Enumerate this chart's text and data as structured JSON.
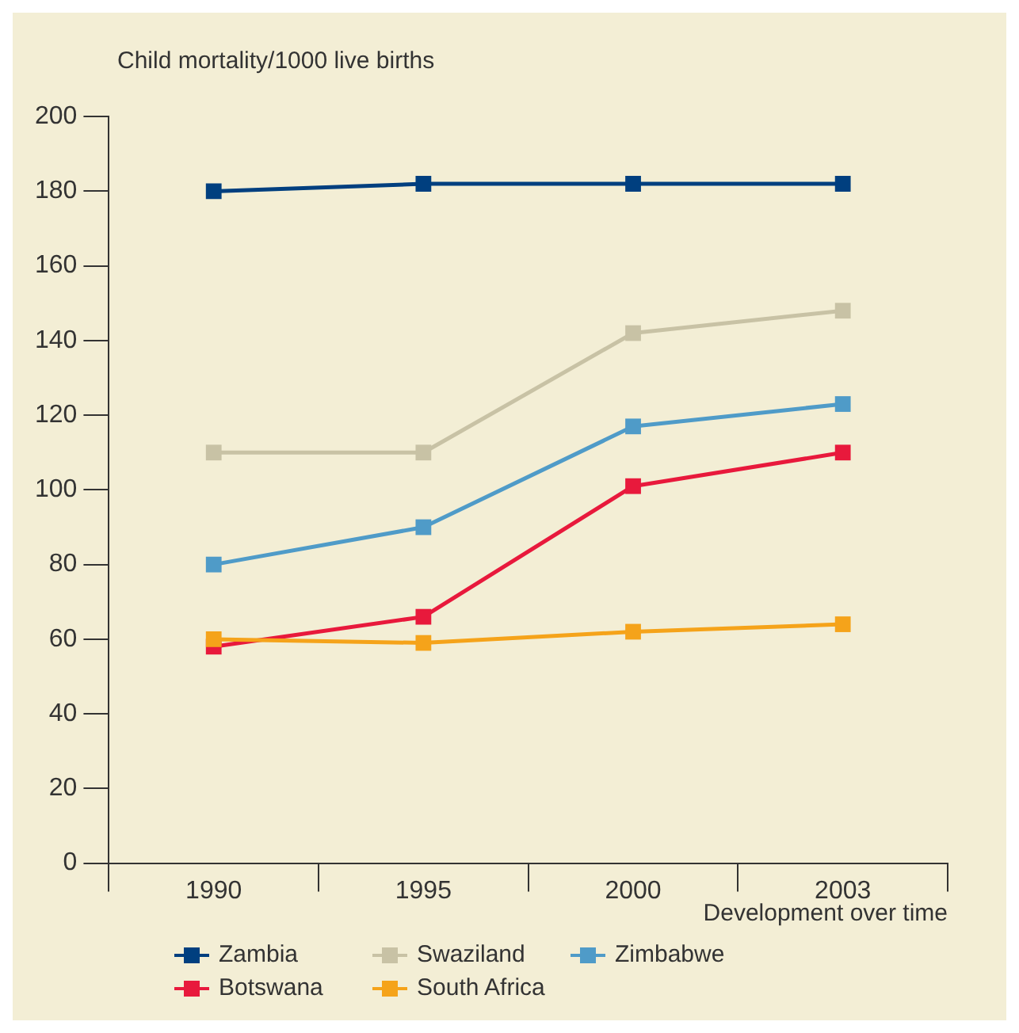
{
  "chart_data": {
    "type": "line",
    "ylabel": "Child mortality/1000 live births",
    "xlabel": "Development over time",
    "categories": [
      "1990",
      "1995",
      "2000",
      "2003"
    ],
    "series": [
      {
        "name": "Zambia",
        "color": "#003f7f",
        "values": [
          180,
          182,
          182,
          182
        ]
      },
      {
        "name": "Swaziland",
        "color": "#c8c2a5",
        "values": [
          110,
          110,
          142,
          148
        ]
      },
      {
        "name": "Zimbabwe",
        "color": "#4f9bc8",
        "values": [
          80,
          90,
          117,
          123
        ]
      },
      {
        "name": "Botswana",
        "color": "#e8193c",
        "values": [
          58,
          66,
          101,
          110
        ]
      },
      {
        "name": "South Africa",
        "color": "#f5a31a",
        "values": [
          60,
          59,
          62,
          64
        ]
      }
    ],
    "ylim": [
      0,
      200
    ],
    "yticks": [
      0,
      20,
      40,
      60,
      80,
      100,
      120,
      140,
      160,
      180,
      200
    ],
    "grid": false,
    "legend": "bottom",
    "marker": "square",
    "line_style": "solid"
  }
}
